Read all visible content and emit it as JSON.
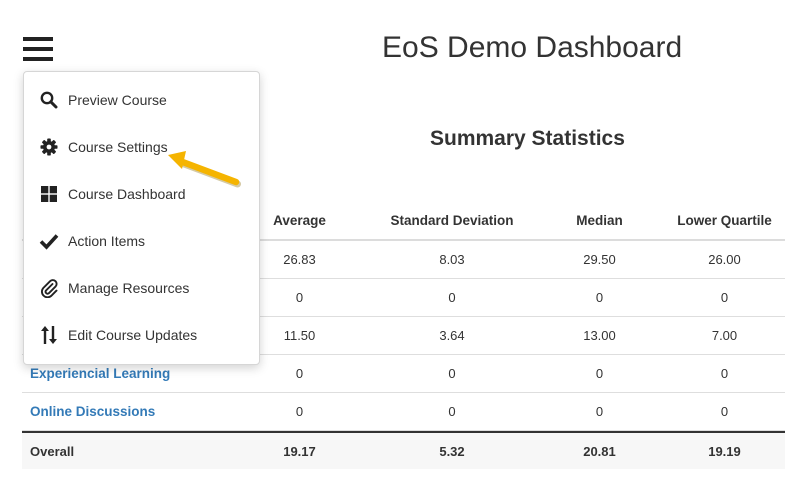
{
  "header": {
    "title": "EoS Demo Dashboard"
  },
  "summary": {
    "title": "Summary Statistics"
  },
  "menu": {
    "items": [
      {
        "label": "Preview Course",
        "icon": "search-icon"
      },
      {
        "label": "Course Settings",
        "icon": "gear-icon"
      },
      {
        "label": "Course Dashboard",
        "icon": "dashboard-grid-icon"
      },
      {
        "label": "Action Items",
        "icon": "checkmark-icon"
      },
      {
        "label": "Manage Resources",
        "icon": "paperclip-icon"
      },
      {
        "label": "Edit Course Updates",
        "icon": "sort-arrows-icon"
      }
    ]
  },
  "table": {
    "columns": [
      "Average",
      "Standard Deviation",
      "Median",
      "Lower Quartile"
    ],
    "rows": [
      {
        "name": "",
        "values": [
          "26.83",
          "8.03",
          "29.50",
          "26.00"
        ]
      },
      {
        "name": "",
        "values": [
          "0",
          "0",
          "0",
          "0"
        ]
      },
      {
        "name": "",
        "values": [
          "11.50",
          "3.64",
          "13.00",
          "7.00"
        ]
      },
      {
        "name": "Experiencial Learning",
        "values": [
          "0",
          "0",
          "0",
          "0"
        ]
      },
      {
        "name": "Online Discussions",
        "values": [
          "0",
          "0",
          "0",
          "0"
        ]
      }
    ],
    "overall": {
      "name": "Overall",
      "values": [
        "19.17",
        "5.32",
        "20.81",
        "19.19"
      ]
    }
  },
  "colors": {
    "link": "#337ab7",
    "annotation_arrow": "#f5b400",
    "text": "#333333"
  }
}
